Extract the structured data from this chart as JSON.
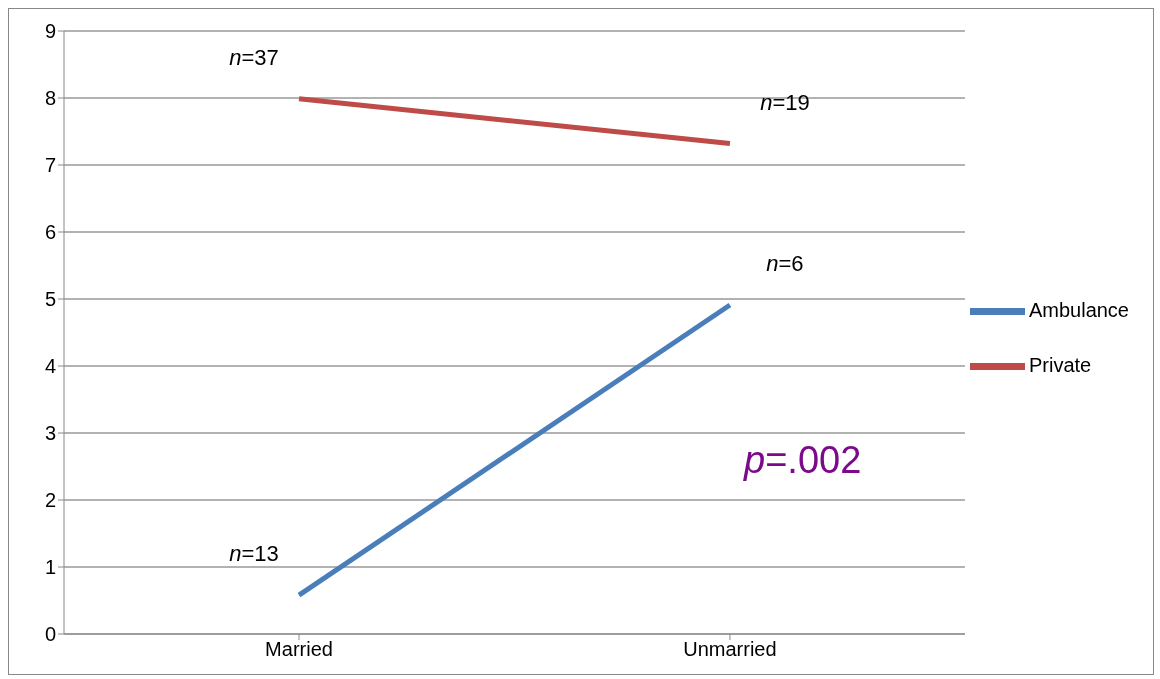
{
  "chart_data": {
    "type": "line",
    "categories": [
      "Married",
      "Unmarried"
    ],
    "series": [
      {
        "name": "Ambulance",
        "color": "#4a7ebb",
        "values": [
          0.58,
          4.91
        ]
      },
      {
        "name": "Private",
        "color": "#be4b48",
        "values": [
          7.99,
          7.32
        ]
      }
    ],
    "ylim": [
      0,
      9
    ],
    "yticks": [
      0,
      1,
      2,
      3,
      4,
      5,
      6,
      7,
      8,
      9
    ],
    "grid": "y",
    "legend": "right",
    "marker": "none",
    "line_style": "solid",
    "annotations": [
      {
        "text": "n=37",
        "x": "Married",
        "y": 7.99
      },
      {
        "text": "n=13",
        "x": "Married",
        "y": 0.58
      },
      {
        "text": "n=6",
        "x": "Unmarried",
        "y": 4.91
      },
      {
        "text": "n=19",
        "x": "Unmarried",
        "y": 7.32
      },
      "p=.002"
    ]
  }
}
